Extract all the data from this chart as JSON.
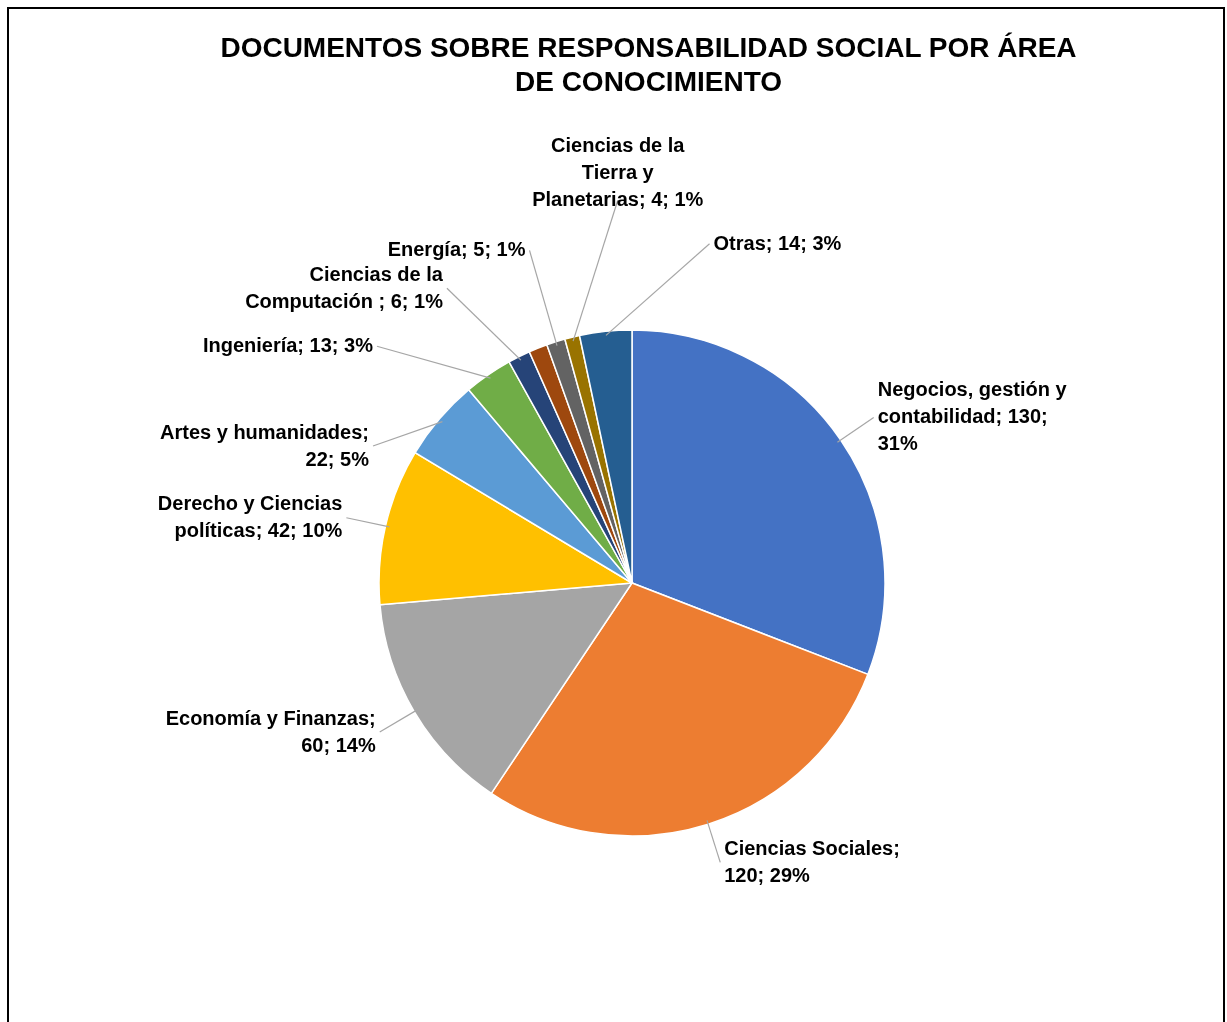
{
  "chart_data": {
    "type": "pie",
    "title": "DOCUMENTOS SOBRE RESPONSABILIDAD SOCIAL POR ÁREA DE CONOCIMIENTO",
    "categories": [
      "Negocios, gestión y contabilidad",
      "Ciencias Sociales",
      "Economía y Finanzas",
      "Derecho y Ciencias políticas",
      "Artes y humanidades",
      "Ingeniería",
      "Ciencias de la Computación ",
      null,
      "Energía",
      "Ciencias de la Tierra y Planetarias",
      "Otras"
    ],
    "values": [
      130,
      120,
      60,
      42,
      22,
      13,
      6,
      5,
      5,
      4,
      14
    ],
    "colors": [
      "#4472c4",
      "#ed7d31",
      "#a5a5a5",
      "#ffc000",
      "#5b9bd5",
      "#70ad47",
      "#264478",
      "#9e480e",
      "#636363",
      "#997300",
      "#255e91"
    ],
    "value_labels": [
      "; 130; 31%",
      "; 120; 29%",
      "; 60; 14%",
      "; 42; 10%",
      "; 22; 5%",
      "; 13; 3%",
      "; 6; 1%",
      null,
      "; 5; 1%",
      "; 4; 1%",
      "; 14; 3%"
    ]
  }
}
